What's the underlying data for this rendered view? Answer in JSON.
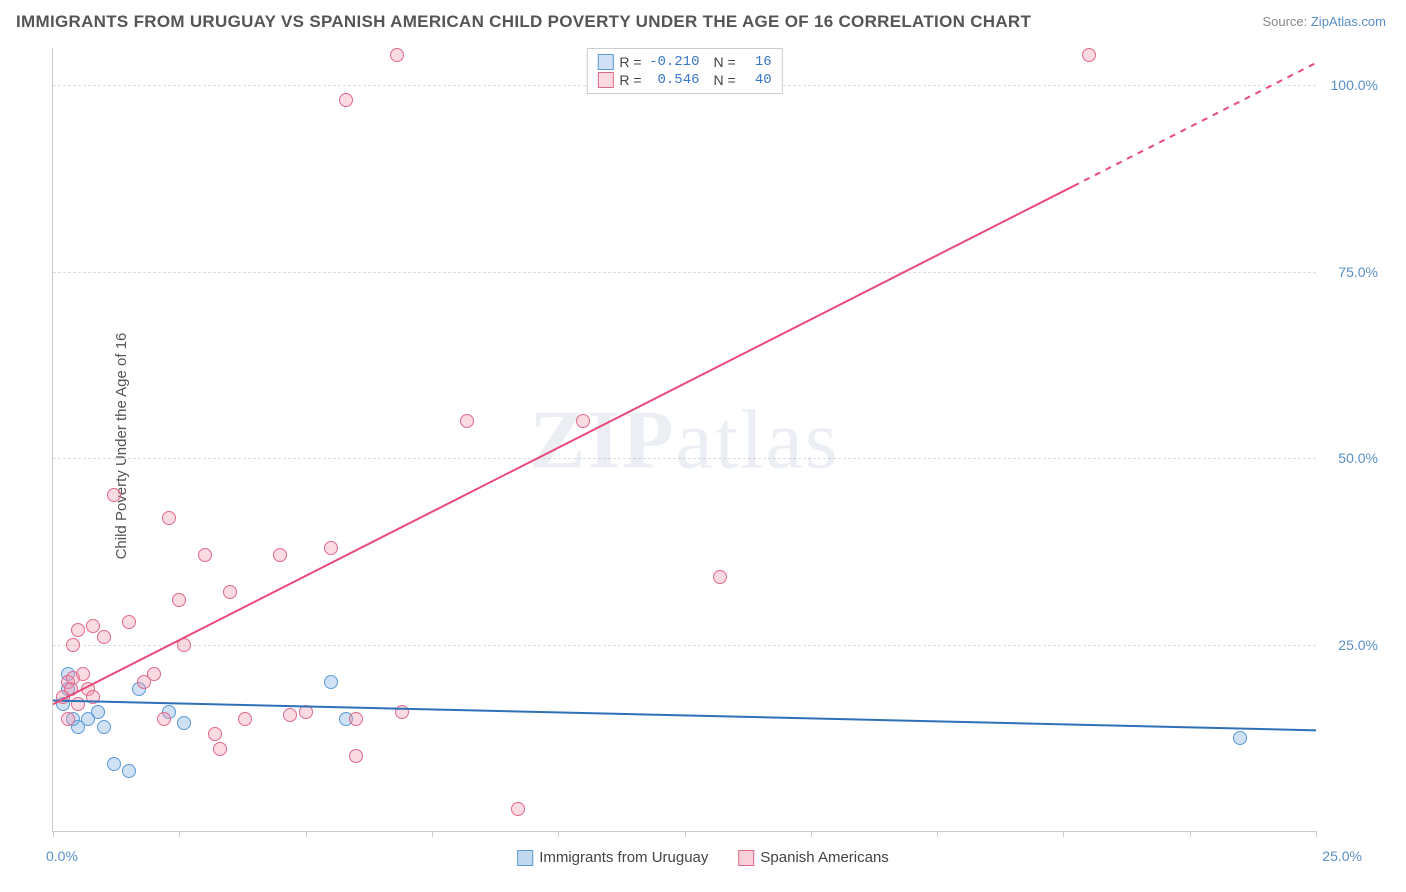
{
  "title": "IMMIGRANTS FROM URUGUAY VS SPANISH AMERICAN CHILD POVERTY UNDER THE AGE OF 16 CORRELATION CHART",
  "source_prefix": "Source: ",
  "source_link": "ZipAtlas.com",
  "ylabel": "Child Poverty Under the Age of 16",
  "watermark_a": "ZIP",
  "watermark_b": "atlas",
  "chart": {
    "type": "scatter",
    "xlim": [
      0,
      25
    ],
    "ylim": [
      0,
      105
    ],
    "x_ticks": [
      0,
      2.5,
      5,
      7.5,
      10,
      12.5,
      15,
      17.5,
      20,
      22.5,
      25
    ],
    "x_tick_labels": {
      "0": "0.0%",
      "25": "25.0%"
    },
    "y_gridlines": [
      25,
      50,
      75,
      100
    ],
    "y_tick_labels": {
      "25": "25.0%",
      "50": "50.0%",
      "75": "75.0%",
      "100": "100.0%"
    },
    "background_color": "#ffffff",
    "grid_color": "#dddddd",
    "axis_color": "#cccccc",
    "marker_radius": 7,
    "marker_stroke_width": 1.5,
    "series": [
      {
        "name": "Immigrants from Uruguay",
        "fill": "rgba(120,170,225,0.35)",
        "stroke": "#5a9bd5",
        "line_color": "#2f70b8",
        "line_width": 2,
        "R": "-0.210",
        "N": "16",
        "trend": {
          "x1": 0,
          "y1": 17.5,
          "x2": 25,
          "y2": 13.5,
          "dash_from_x": null
        },
        "points": [
          [
            0.2,
            17
          ],
          [
            0.3,
            19
          ],
          [
            0.3,
            21
          ],
          [
            0.4,
            15
          ],
          [
            0.5,
            14
          ],
          [
            0.7,
            15
          ],
          [
            0.9,
            16
          ],
          [
            1.0,
            14
          ],
          [
            1.2,
            9
          ],
          [
            1.5,
            8
          ],
          [
            1.7,
            19
          ],
          [
            2.3,
            16
          ],
          [
            2.6,
            14.5
          ],
          [
            5.5,
            20
          ],
          [
            5.8,
            15
          ],
          [
            23.5,
            12.5
          ]
        ]
      },
      {
        "name": "Spanish Americans",
        "fill": "rgba(240,150,175,0.35)",
        "stroke": "#e06a8a",
        "line_color": "#e84b7a",
        "line_width": 2,
        "R": "0.546",
        "N": "40",
        "trend": {
          "x1": 0,
          "y1": 17,
          "x2": 25,
          "y2": 103,
          "dash_from_x": 20.2
        },
        "points": [
          [
            0.2,
            18
          ],
          [
            0.3,
            20
          ],
          [
            0.3,
            15
          ],
          [
            0.35,
            19
          ],
          [
            0.4,
            20.5
          ],
          [
            0.4,
            25
          ],
          [
            0.5,
            17
          ],
          [
            0.5,
            27
          ],
          [
            0.6,
            21
          ],
          [
            0.7,
            19
          ],
          [
            0.8,
            27.5
          ],
          [
            0.8,
            18
          ],
          [
            1.0,
            26
          ],
          [
            1.2,
            45
          ],
          [
            1.5,
            28
          ],
          [
            1.8,
            20
          ],
          [
            2.0,
            21
          ],
          [
            2.2,
            15
          ],
          [
            2.3,
            42
          ],
          [
            2.5,
            31
          ],
          [
            2.6,
            25
          ],
          [
            3.0,
            37
          ],
          [
            3.2,
            13
          ],
          [
            3.3,
            11
          ],
          [
            3.5,
            32
          ],
          [
            3.8,
            15
          ],
          [
            4.5,
            37
          ],
          [
            4.7,
            15.5
          ],
          [
            5.0,
            16
          ],
          [
            5.5,
            38
          ],
          [
            6.0,
            10
          ],
          [
            5.8,
            98
          ],
          [
            6.0,
            15
          ],
          [
            6.8,
            104
          ],
          [
            6.9,
            16
          ],
          [
            8.2,
            55
          ],
          [
            9.2,
            3
          ],
          [
            10.5,
            55
          ],
          [
            13.2,
            34
          ],
          [
            20.5,
            104
          ]
        ]
      }
    ]
  },
  "legend_bottom": [
    {
      "label": "Immigrants from Uruguay",
      "fill": "rgba(120,170,225,0.45)",
      "stroke": "#5a9bd5"
    },
    {
      "label": "Spanish Americans",
      "fill": "rgba(240,150,175,0.45)",
      "stroke": "#e06a8a"
    }
  ],
  "stat_labels": {
    "R": "R =",
    "N": "N ="
  }
}
